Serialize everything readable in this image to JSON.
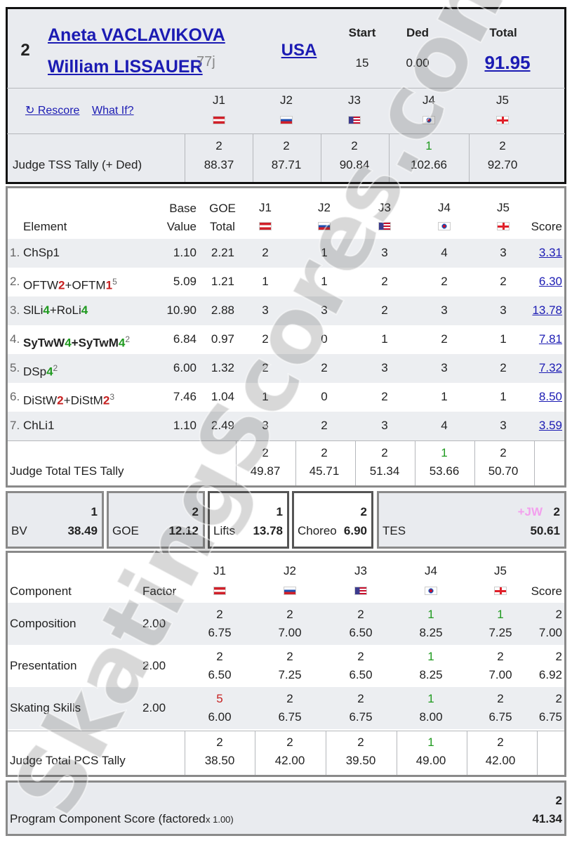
{
  "header": {
    "rank": "2",
    "names": [
      "Aneta VACLAVIKOVA",
      "William LISSAUER"
    ],
    "name_sup": "77j",
    "country": "USA",
    "start_label": "Start",
    "start": "15",
    "ded_label": "Ded",
    "ded": "0.00",
    "total_label": "Total",
    "total": "91.95"
  },
  "links": [
    "↻ Rescore",
    "What If?"
  ],
  "judges": [
    "J1",
    "J2",
    "J3",
    "J4",
    "J5"
  ],
  "rank_colors": {
    "1": "#1f9a1f",
    "5": "#c62020"
  },
  "tss_tally": {
    "label": "Judge TSS Tally (+ Ded)",
    "ranks": [
      "2",
      "2",
      "2",
      "1",
      "2"
    ],
    "values": [
      "88.37",
      "87.71",
      "90.84",
      "102.66",
      "92.70"
    ]
  },
  "elements": {
    "headers": {
      "element": "Element",
      "base_value": [
        "Base",
        "Value"
      ],
      "goe_total": [
        "GOE",
        "Total"
      ],
      "score": "Score"
    },
    "rows": [
      {
        "no": "1.",
        "name": [
          {
            "t": "ChSp1"
          }
        ],
        "base": "1.10",
        "goe": "2.21",
        "judges": [
          "2",
          "1",
          "3",
          "4",
          "3"
        ],
        "score": "3.31"
      },
      {
        "no": "2.",
        "name": [
          {
            "t": "OFTW"
          },
          {
            "t": "2",
            "c": "#c62020"
          },
          {
            "t": "+OFTM"
          },
          {
            "t": "1",
            "c": "#c62020"
          }
        ],
        "sup": "5",
        "base": "5.09",
        "goe": "1.21",
        "judges": [
          "1",
          "1",
          "2",
          "2",
          "2"
        ],
        "score": "6.30"
      },
      {
        "no": "3.",
        "name": [
          {
            "t": "SlLi"
          },
          {
            "t": "4",
            "c": "#1f9a1f"
          },
          {
            "t": "+RoLi"
          },
          {
            "t": "4",
            "c": "#1f9a1f"
          }
        ],
        "base": "10.90",
        "goe": "2.88",
        "judges": [
          "3",
          "3",
          "2",
          "3",
          "3"
        ],
        "score": "13.78"
      },
      {
        "no": "4.",
        "bold": true,
        "name": [
          {
            "t": "SyTwW"
          },
          {
            "t": "4",
            "c": "#1f9a1f"
          },
          {
            "t": "+SyTwM"
          },
          {
            "t": "4",
            "c": "#1f9a1f"
          }
        ],
        "sup": "2",
        "base": "6.84",
        "goe": "0.97",
        "judges": [
          "2",
          "0",
          "1",
          "2",
          "1"
        ],
        "score": "7.81"
      },
      {
        "no": "5.",
        "name": [
          {
            "t": "DSp"
          },
          {
            "t": "4",
            "c": "#1f9a1f"
          }
        ],
        "sup": "2",
        "base": "6.00",
        "goe": "1.32",
        "judges": [
          "2",
          "2",
          "3",
          "3",
          "2"
        ],
        "score": "7.32"
      },
      {
        "no": "6.",
        "name": [
          {
            "t": "DiStW"
          },
          {
            "t": "2",
            "c": "#c62020"
          },
          {
            "t": "+DiStM"
          },
          {
            "t": "2",
            "c": "#c62020"
          }
        ],
        "sup": "3",
        "base": "7.46",
        "goe": "1.04",
        "judges": [
          "1",
          "0",
          "2",
          "1",
          "1"
        ],
        "score": "8.50"
      },
      {
        "no": "7.",
        "name": [
          {
            "t": "ChLi1"
          }
        ],
        "base": "1.10",
        "goe": "2.49",
        "judges": [
          "3",
          "2",
          "3",
          "4",
          "3"
        ],
        "score": "3.59"
      }
    ],
    "tally": {
      "label": "Judge Total TES Tally",
      "ranks": [
        "2",
        "2",
        "2",
        "1",
        "2"
      ],
      "values": [
        "49.87",
        "45.71",
        "51.34",
        "53.66",
        "50.70"
      ]
    }
  },
  "summary": [
    {
      "label": "BV",
      "rank": "1",
      "value": "38.49"
    },
    {
      "label": "GOE",
      "rank": "2",
      "value": "12.12"
    },
    {
      "label": "Lifts",
      "rank": "1",
      "value": "13.78"
    },
    {
      "label": "Choreo",
      "rank": "2",
      "value": "6.90"
    },
    {
      "label": "TES",
      "badge": "+JW",
      "rank": "2",
      "value": "50.61"
    }
  ],
  "components": {
    "headers": {
      "component": "Component",
      "factor": "Factor",
      "score": "Score"
    },
    "rows": [
      {
        "name": "Composition",
        "factor": "2.00",
        "ranks": [
          "2",
          "2",
          "2",
          "1",
          "1"
        ],
        "values": [
          "6.75",
          "7.00",
          "6.50",
          "8.25",
          "7.25"
        ],
        "score_rank": "2",
        "score": "7.00"
      },
      {
        "name": "Presentation",
        "factor": "2.00",
        "ranks": [
          "2",
          "2",
          "2",
          "1",
          "2"
        ],
        "values": [
          "6.50",
          "7.25",
          "6.50",
          "8.25",
          "7.00"
        ],
        "score_rank": "2",
        "score": "6.92"
      },
      {
        "name": "Skating Skills",
        "factor": "2.00",
        "ranks": [
          "5",
          "2",
          "2",
          "1",
          "2"
        ],
        "values": [
          "6.00",
          "6.75",
          "6.75",
          "8.00",
          "6.75"
        ],
        "score_rank": "2",
        "score": "6.75"
      }
    ],
    "tally": {
      "label": "Judge Total PCS Tally",
      "ranks": [
        "2",
        "2",
        "2",
        "1",
        "2"
      ],
      "values": [
        "38.50",
        "42.00",
        "39.50",
        "49.00",
        "42.00"
      ]
    }
  },
  "pcs_total": {
    "label": "Program Component Score (factored",
    "factor": " x 1.00)",
    "rank": "2",
    "value": "41.34"
  },
  "watermark": "SkatingScores.com"
}
